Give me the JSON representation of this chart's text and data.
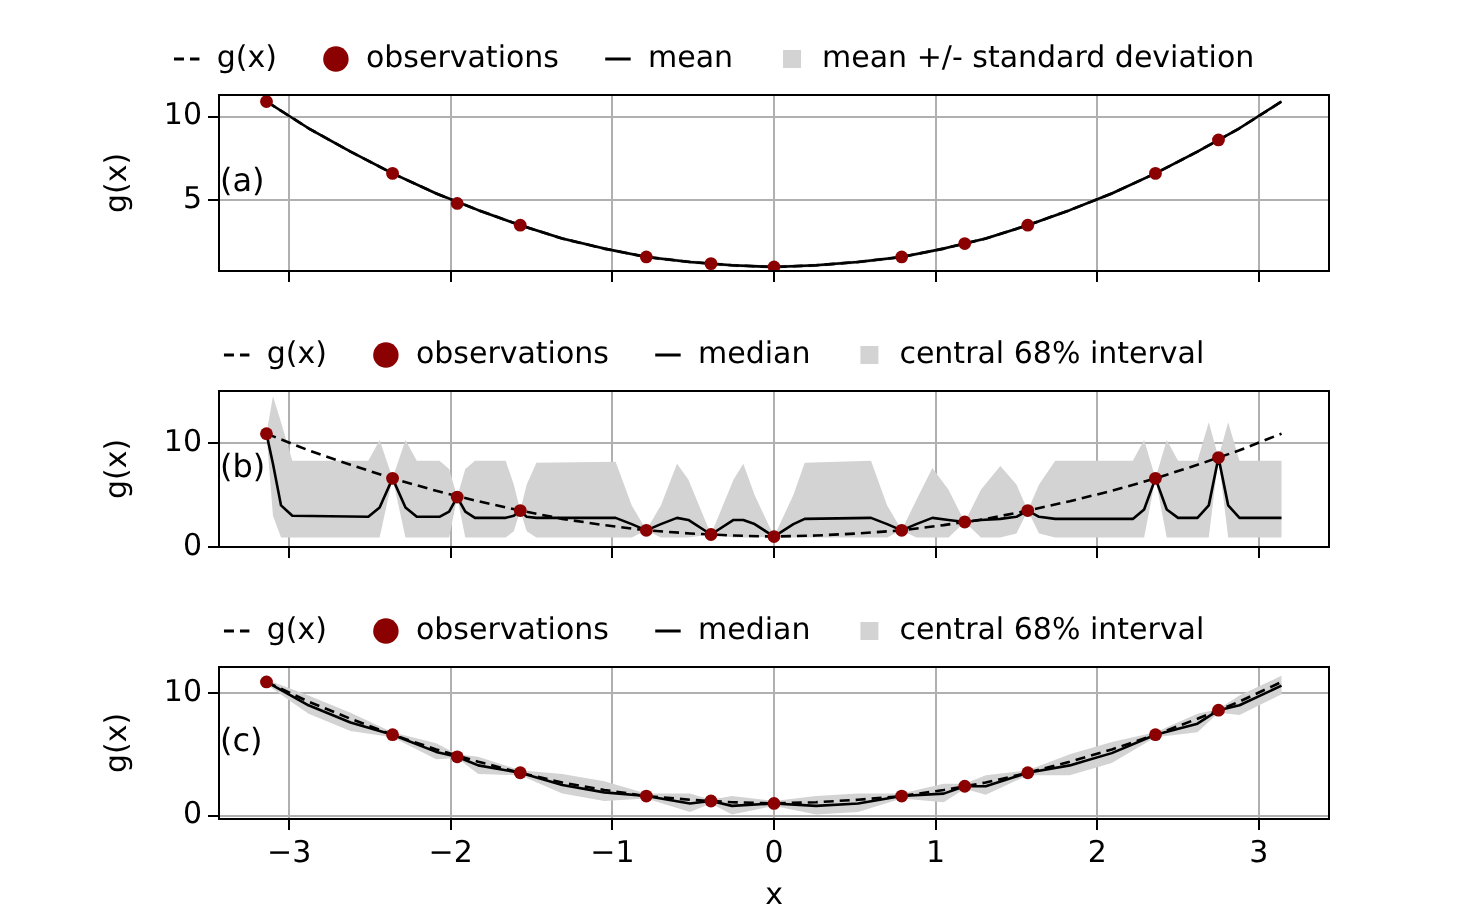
{
  "chart_data": [
    {
      "type": "line",
      "ylabel": "g(x)",
      "annotations": [
        "(a)"
      ],
      "xlim": [
        -3.44,
        3.44
      ],
      "ylim": [
        0.7,
        11.35
      ],
      "xticks": [
        -3,
        -2,
        -1,
        0,
        1,
        2,
        3
      ],
      "yticks": [
        5,
        10
      ],
      "grid": true,
      "legend": "top",
      "tick_labels": "y",
      "series": [
        {
          "name": "g(x)",
          "type": "line",
          "line_style": "dashed",
          "color": "#000000",
          "x": [
            -3.14,
            -2.88,
            -2.62,
            -2.36,
            -2.09,
            -1.83,
            -1.57,
            -1.31,
            -1.05,
            -0.79,
            -0.52,
            -0.26,
            0,
            0.26,
            0.52,
            0.79,
            1.05,
            1.31,
            1.57,
            1.83,
            2.09,
            2.36,
            2.62,
            2.88,
            3.14
          ],
          "values": [
            10.9,
            9.3,
            7.9,
            6.6,
            5.4,
            4.4,
            3.5,
            2.7,
            2.1,
            1.6,
            1.3,
            1.1,
            1.0,
            1.1,
            1.3,
            1.6,
            2.1,
            2.7,
            3.5,
            4.4,
            5.4,
            6.6,
            7.9,
            9.3,
            10.9
          ]
        },
        {
          "name": "observations",
          "type": "scatter",
          "marker": "circle",
          "color": "#8b0000",
          "x": [
            -3.14,
            -2.36,
            -1.96,
            -1.57,
            -0.79,
            -0.39,
            0,
            0.79,
            1.18,
            1.57,
            2.36,
            2.75
          ],
          "values": [
            10.9,
            6.6,
            4.8,
            3.5,
            1.6,
            1.2,
            1.0,
            1.6,
            2.4,
            3.5,
            6.6,
            8.6
          ]
        },
        {
          "name": "mean",
          "type": "line",
          "line_style": "solid",
          "color": "#000000",
          "x": [
            -3.14,
            -2.88,
            -2.62,
            -2.36,
            -2.09,
            -1.83,
            -1.57,
            -1.31,
            -1.05,
            -0.79,
            -0.52,
            -0.26,
            0,
            0.26,
            0.52,
            0.79,
            1.05,
            1.31,
            1.57,
            1.83,
            2.09,
            2.36,
            2.62,
            2.88,
            3.14
          ],
          "values": [
            10.9,
            9.3,
            7.9,
            6.6,
            5.4,
            4.4,
            3.5,
            2.7,
            2.1,
            1.6,
            1.3,
            1.1,
            1.0,
            1.1,
            1.3,
            1.6,
            2.1,
            2.7,
            3.5,
            4.4,
            5.4,
            6.6,
            7.9,
            9.3,
            10.9
          ],
          "lower": [
            10.8,
            9.2,
            7.8,
            6.5,
            5.3,
            4.3,
            3.4,
            2.6,
            2.0,
            1.5,
            1.2,
            1.0,
            0.9,
            1.0,
            1.2,
            1.5,
            2.0,
            2.6,
            3.4,
            4.3,
            5.3,
            6.5,
            7.8,
            9.2,
            10.8
          ],
          "upper": [
            11.0,
            9.4,
            8.0,
            6.7,
            5.5,
            4.5,
            3.6,
            2.8,
            2.2,
            1.7,
            1.4,
            1.2,
            1.1,
            1.2,
            1.4,
            1.7,
            2.2,
            2.8,
            3.6,
            4.5,
            5.5,
            6.7,
            8.0,
            9.4,
            11.0
          ]
        },
        {
          "name": "mean +/- standard deviation",
          "type": "area",
          "color": "#d3d3d3"
        }
      ]
    },
    {
      "type": "line",
      "ylabel": "g(x)",
      "annotations": [
        "(b)"
      ],
      "xlim": [
        -3.44,
        3.44
      ],
      "ylim": [
        -0.1,
        15.1
      ],
      "xticks": [
        -3,
        -2,
        -1,
        0,
        1,
        2,
        3
      ],
      "yticks": [
        0,
        10
      ],
      "grid": true,
      "legend": "top",
      "tick_labels": "y",
      "series": [
        {
          "name": "g(x)",
          "type": "line",
          "line_style": "dashed",
          "color": "#000000",
          "x": [
            -3.14,
            -2.88,
            -2.62,
            -2.36,
            -2.09,
            -1.83,
            -1.57,
            -1.31,
            -1.05,
            -0.79,
            -0.52,
            -0.26,
            0,
            0.26,
            0.52,
            0.79,
            1.05,
            1.31,
            1.57,
            1.83,
            2.09,
            2.36,
            2.62,
            2.88,
            3.14
          ],
          "values": [
            10.9,
            9.3,
            7.9,
            6.6,
            5.4,
            4.4,
            3.5,
            2.7,
            2.1,
            1.6,
            1.3,
            1.1,
            1.0,
            1.1,
            1.3,
            1.6,
            2.1,
            2.7,
            3.5,
            4.4,
            5.4,
            6.6,
            7.9,
            9.3,
            10.9
          ]
        },
        {
          "name": "observations",
          "type": "scatter",
          "marker": "circle",
          "color": "#8b0000",
          "x": [
            -3.14,
            -2.36,
            -1.96,
            -1.57,
            -0.79,
            -0.39,
            0,
            0.79,
            1.18,
            1.57,
            2.36,
            2.75
          ],
          "values": [
            10.9,
            6.6,
            4.8,
            3.5,
            1.6,
            1.2,
            1.0,
            1.6,
            2.4,
            3.5,
            6.6,
            8.6
          ]
        },
        {
          "name": "median",
          "type": "line",
          "line_style": "solid",
          "color": "#000000",
          "x": [
            -3.14,
            -3.1,
            -3.05,
            -2.98,
            -2.51,
            -2.44,
            -2.36,
            -2.28,
            -2.21,
            -2.07,
            -2.01,
            -1.96,
            -1.91,
            -1.85,
            -1.66,
            -1.61,
            -1.57,
            -1.53,
            -1.47,
            -0.98,
            -0.88,
            -0.79,
            -0.7,
            -0.6,
            -0.53,
            -0.39,
            -0.25,
            -0.19,
            -0.12,
            0,
            0.12,
            0.19,
            0.6,
            0.7,
            0.79,
            0.88,
            0.98,
            1.08,
            1.18,
            1.28,
            1.4,
            1.5,
            1.57,
            1.64,
            1.74,
            2.22,
            2.29,
            2.36,
            2.43,
            2.5,
            2.62,
            2.69,
            2.75,
            2.81,
            2.88,
            3.14
          ],
          "values": [
            10.9,
            8.0,
            4.0,
            3.0,
            2.9,
            3.8,
            6.6,
            3.8,
            2.9,
            2.9,
            3.4,
            4.8,
            3.4,
            2.8,
            2.8,
            3.0,
            3.5,
            2.9,
            2.8,
            2.8,
            2.2,
            1.6,
            2.2,
            2.8,
            2.6,
            1.2,
            2.6,
            2.6,
            2.2,
            1.0,
            2.2,
            2.7,
            2.8,
            2.2,
            1.6,
            2.2,
            2.8,
            2.6,
            2.4,
            2.6,
            2.7,
            2.9,
            3.5,
            2.9,
            2.7,
            2.7,
            3.6,
            6.6,
            3.6,
            2.8,
            2.8,
            4.0,
            8.6,
            4.0,
            2.8,
            2.8
          ],
          "lower": [
            10.9,
            3.0,
            0.9,
            0.9,
            0.9,
            0.9,
            6.6,
            0.9,
            0.9,
            0.9,
            0.9,
            4.8,
            0.9,
            0.9,
            0.9,
            1.5,
            3.5,
            1.5,
            0.9,
            0.9,
            0.9,
            1.6,
            0.9,
            0.9,
            0.9,
            1.2,
            0.9,
            0.9,
            0.9,
            1.0,
            0.9,
            0.9,
            0.9,
            0.9,
            1.6,
            0.9,
            0.9,
            0.9,
            2.4,
            0.9,
            0.9,
            1.3,
            3.5,
            1.3,
            0.9,
            0.9,
            0.9,
            6.6,
            0.9,
            0.9,
            0.9,
            0.9,
            8.6,
            0.9,
            0.9,
            0.9
          ],
          "upper": [
            10.9,
            14.5,
            12.0,
            8.3,
            8.3,
            10.3,
            6.6,
            10.3,
            8.3,
            8.3,
            7.5,
            4.8,
            7.5,
            8.3,
            8.3,
            6.0,
            3.5,
            6.0,
            8.1,
            8.2,
            4.0,
            1.6,
            4.0,
            8.0,
            6.5,
            1.2,
            6.5,
            8.0,
            5.0,
            1.0,
            5.0,
            8.1,
            8.3,
            4.0,
            1.6,
            4.5,
            7.6,
            5.5,
            2.4,
            5.5,
            7.8,
            6.0,
            3.5,
            6.0,
            8.3,
            8.3,
            10.3,
            6.6,
            10.3,
            8.3,
            8.3,
            12.0,
            8.6,
            12.0,
            8.3,
            8.3
          ]
        },
        {
          "name": "central 68% interval",
          "type": "area",
          "color": "#d3d3d3"
        }
      ]
    },
    {
      "type": "line",
      "ylabel": "g(x)",
      "xlabel": "x",
      "annotations": [
        "(c)"
      ],
      "xlim": [
        -3.44,
        3.44
      ],
      "ylim": [
        -0.35,
        12.2
      ],
      "xticks": [
        {
          "value": -3,
          "label": "−3"
        },
        {
          "value": -2,
          "label": "−2"
        },
        {
          "value": -1,
          "label": "−1"
        },
        0,
        1,
        2,
        3
      ],
      "yticks": [
        0,
        10
      ],
      "grid": true,
      "legend": "top",
      "series": [
        {
          "name": "g(x)",
          "type": "line",
          "line_style": "dashed",
          "color": "#000000",
          "x": [
            -3.14,
            -2.88,
            -2.62,
            -2.36,
            -2.09,
            -1.83,
            -1.57,
            -1.31,
            -1.05,
            -0.79,
            -0.52,
            -0.26,
            0,
            0.26,
            0.52,
            0.79,
            1.05,
            1.31,
            1.57,
            1.83,
            2.09,
            2.36,
            2.62,
            2.88,
            3.14
          ],
          "values": [
            10.9,
            9.3,
            7.9,
            6.6,
            5.4,
            4.4,
            3.5,
            2.7,
            2.1,
            1.6,
            1.3,
            1.1,
            1.0,
            1.1,
            1.3,
            1.6,
            2.1,
            2.7,
            3.5,
            4.4,
            5.4,
            6.6,
            7.9,
            9.3,
            10.9
          ]
        },
        {
          "name": "observations",
          "type": "scatter",
          "marker": "circle",
          "color": "#8b0000",
          "x": [
            -3.14,
            -2.36,
            -1.96,
            -1.57,
            -0.79,
            -0.39,
            0,
            0.79,
            1.18,
            1.57,
            2.36,
            2.75
          ],
          "values": [
            10.9,
            6.6,
            4.8,
            3.5,
            1.6,
            1.2,
            1.0,
            1.6,
            2.4,
            3.5,
            6.6,
            8.6
          ]
        },
        {
          "name": "median",
          "type": "line",
          "line_style": "solid",
          "color": "#000000",
          "x": [
            -3.14,
            -2.88,
            -2.62,
            -2.36,
            -2.09,
            -1.96,
            -1.83,
            -1.57,
            -1.31,
            -1.05,
            -0.79,
            -0.52,
            -0.39,
            -0.26,
            0,
            0.26,
            0.52,
            0.79,
            1.05,
            1.18,
            1.31,
            1.57,
            1.83,
            2.09,
            2.36,
            2.62,
            2.75,
            2.88,
            3.14
          ],
          "values": [
            10.9,
            9.0,
            7.6,
            6.6,
            5.2,
            4.8,
            4.1,
            3.5,
            2.5,
            1.9,
            1.6,
            1.0,
            1.2,
            0.8,
            1.0,
            0.8,
            1.0,
            1.6,
            1.8,
            2.4,
            2.4,
            3.5,
            4.1,
            5.1,
            6.6,
            7.5,
            8.6,
            9.0,
            10.6
          ],
          "lower": [
            10.7,
            8.3,
            6.9,
            6.4,
            4.6,
            4.7,
            3.4,
            3.3,
            1.8,
            1.2,
            1.4,
            0.3,
            1.0,
            0.1,
            0.8,
            0.1,
            0.3,
            1.4,
            1.1,
            2.2,
            1.7,
            3.3,
            3.3,
            4.3,
            6.4,
            6.8,
            8.4,
            8.2,
            9.9
          ],
          "upper": [
            11.1,
            9.8,
            8.4,
            6.8,
            5.9,
            5.0,
            4.8,
            3.7,
            3.4,
            2.8,
            1.8,
            1.8,
            1.3,
            1.6,
            1.2,
            1.6,
            1.8,
            1.8,
            2.6,
            2.6,
            3.3,
            3.7,
            5.0,
            6.0,
            6.8,
            8.3,
            8.7,
            9.8,
            11.4
          ]
        },
        {
          "name": "central 68% interval",
          "type": "area",
          "color": "#d3d3d3"
        }
      ]
    }
  ]
}
